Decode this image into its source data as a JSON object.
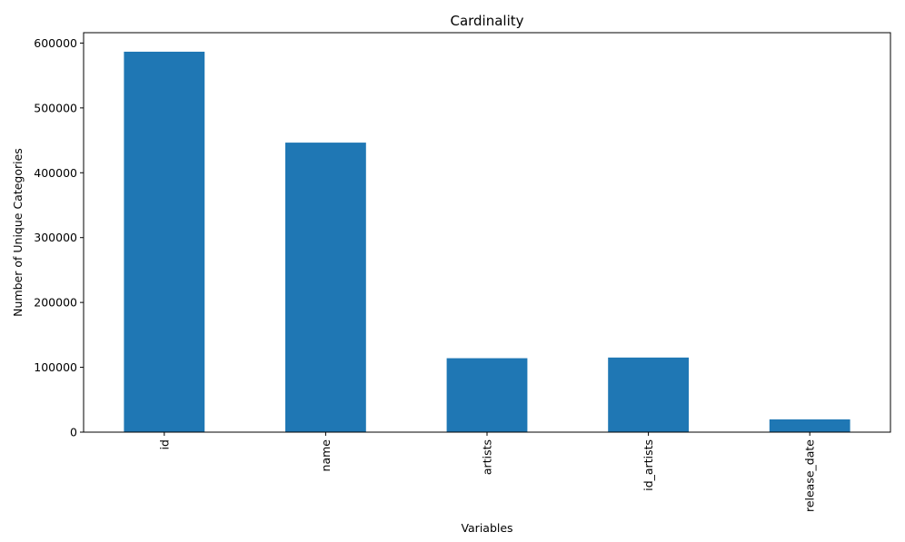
{
  "chart_data": {
    "type": "bar",
    "title": "Cardinality",
    "xlabel": "Variables",
    "ylabel": "Number of Unique Categories",
    "categories": [
      "id",
      "name",
      "artists",
      "id_artists",
      "release_date"
    ],
    "values": [
      586672,
      446474,
      114030,
      115062,
      19700
    ],
    "ylim": [
      0,
      616000
    ],
    "yticks": [
      0,
      100000,
      200000,
      300000,
      400000,
      500000,
      600000
    ],
    "ytick_labels": [
      "0",
      "100000",
      "200000",
      "300000",
      "400000",
      "500000",
      "600000"
    ],
    "grid": false,
    "legend": "none",
    "colors": {
      "bar": "#1f77b4",
      "axis": "#000000",
      "background": "#ffffff"
    }
  }
}
